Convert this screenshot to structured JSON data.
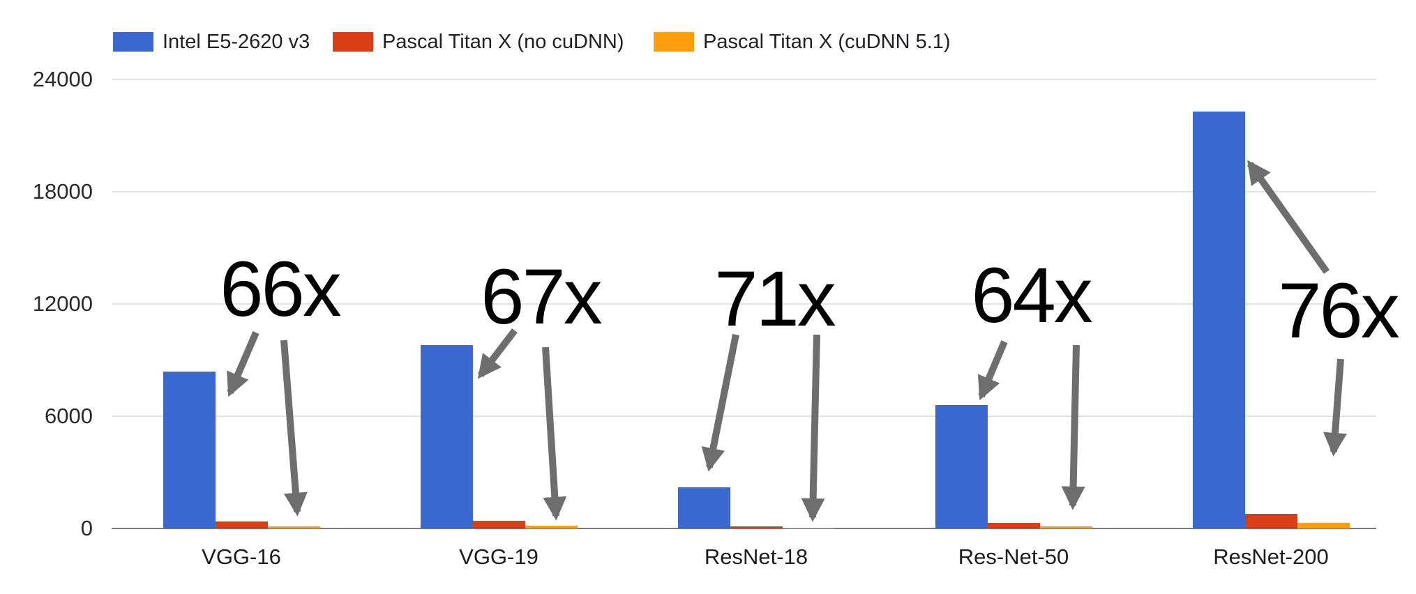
{
  "chart_data": {
    "type": "bar",
    "title": "",
    "categories": [
      "VGG-16",
      "VGG-19",
      "ResNet-18",
      "Res-Net-50",
      "ResNet-200"
    ],
    "series": [
      {
        "name": "Intel E5-2620 v3",
        "color": "#3a67d0",
        "values": [
          8400,
          9800,
          2200,
          6600,
          22300
        ]
      },
      {
        "name": "Pascal Titan X (no cuDNN)",
        "color": "#d93e17",
        "values": [
          360,
          400,
          100,
          280,
          790
        ]
      },
      {
        "name": "Pascal Titan X (cuDNN 5.1)",
        "color": "#ff9e0d",
        "values": [
          127,
          146,
          31,
          103,
          293
        ]
      }
    ],
    "ylim": [
      0,
      24000
    ],
    "yticks": [
      0,
      6000,
      12000,
      18000,
      24000
    ],
    "xlabel": "",
    "ylabel": "",
    "grid": true,
    "legend_position": "top",
    "annotations": [
      {
        "label": "66x",
        "category": "VGG-16"
      },
      {
        "label": "67x",
        "category": "VGG-19"
      },
      {
        "label": "71x",
        "category": "ResNet-18"
      },
      {
        "label": "64x",
        "category": "Res-Net-50"
      },
      {
        "label": "76x",
        "category": "ResNet-200"
      }
    ],
    "style": {
      "annotation_text_color": "#000000",
      "arrow_color": "#6e6e6e",
      "gridline_color": "#e3e3e3",
      "axis_line_color": "#7a7a7a",
      "background": "#ffffff"
    }
  }
}
